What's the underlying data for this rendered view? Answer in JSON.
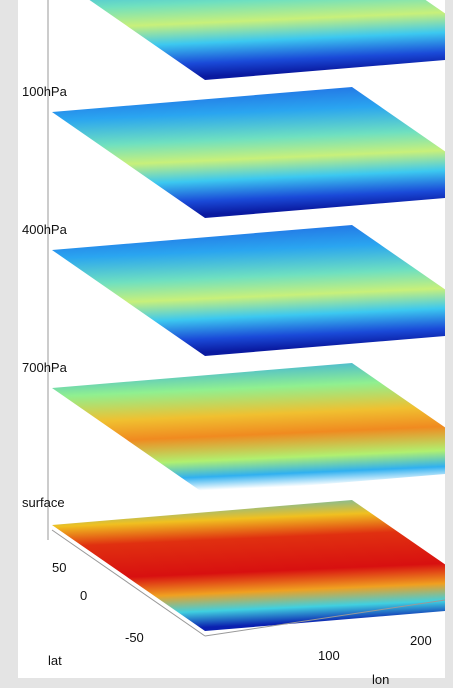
{
  "levels": [
    "100hPa",
    "400hPa",
    "700hPa",
    "surface"
  ],
  "lat_axis": {
    "label": "lat",
    "ticks": [
      "50",
      "0",
      "-50"
    ]
  },
  "lon_axis": {
    "label": "lon",
    "ticks": [
      "100",
      "200"
    ]
  }
}
